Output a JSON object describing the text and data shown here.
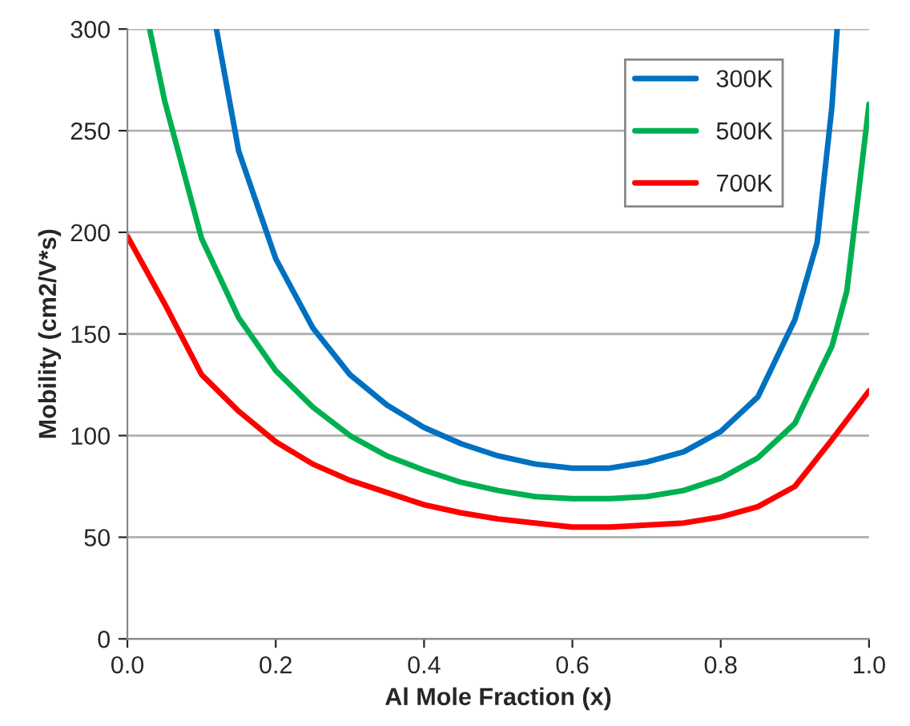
{
  "chart_data": {
    "type": "line",
    "xlabel": "Al Mole Fraction (x)",
    "ylabel": "Mobility (cm2/V*s)",
    "xlim": [
      0,
      1
    ],
    "xticks": [
      {
        "value": 0,
        "label": "0.0"
      },
      0.2,
      0.4,
      0.6,
      0.8,
      {
        "value": 1,
        "label": "1.0"
      }
    ],
    "ylim": [
      0,
      300
    ],
    "yticks": [
      0,
      50,
      100,
      150,
      200,
      250,
      300
    ],
    "grid": "y",
    "legend": "top right",
    "marker": "none",
    "line_style": "solid",
    "series": [
      {
        "name": "300K",
        "color": "#0070c0",
        "x": [
          0.12,
          0.15,
          0.2,
          0.25,
          0.3,
          0.35,
          0.4,
          0.45,
          0.5,
          0.55,
          0.6,
          0.65,
          0.7,
          0.75,
          0.8,
          0.85,
          0.9,
          0.93,
          0.95,
          0.957
        ],
        "values": [
          300,
          240,
          187,
          153,
          130,
          115,
          104,
          96,
          90,
          86,
          84,
          84,
          87,
          92,
          102,
          119,
          157,
          195,
          262,
          300
        ]
      },
      {
        "name": "500K",
        "color": "#00b050",
        "x": [
          0.03,
          0.05,
          0.1,
          0.15,
          0.2,
          0.25,
          0.3,
          0.35,
          0.4,
          0.45,
          0.5,
          0.55,
          0.6,
          0.65,
          0.7,
          0.75,
          0.8,
          0.85,
          0.9,
          0.95,
          0.97,
          1.0
        ],
        "values": [
          300,
          265,
          197,
          158,
          132,
          114,
          100,
          90,
          83,
          77,
          73,
          70,
          69,
          69,
          70,
          73,
          79,
          89,
          106,
          144,
          171,
          263
        ]
      },
      {
        "name": "700K",
        "color": "#ff0000",
        "x": [
          0,
          0.05,
          0.1,
          0.15,
          0.2,
          0.25,
          0.3,
          0.35,
          0.4,
          0.45,
          0.5,
          0.55,
          0.6,
          0.65,
          0.7,
          0.75,
          0.8,
          0.85,
          0.9,
          0.95,
          1.0
        ],
        "values": [
          198,
          165,
          130,
          112,
          97,
          86,
          78,
          72,
          66,
          62,
          59,
          57,
          55,
          55,
          56,
          57,
          60,
          65,
          75,
          98,
          122
        ]
      }
    ]
  }
}
